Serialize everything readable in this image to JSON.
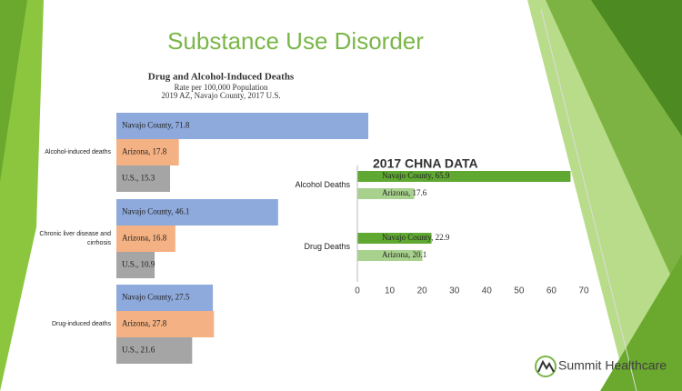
{
  "slide": {
    "title": "Substance Use Disorder",
    "logo": "Summit Healthcare"
  },
  "chart_data": [
    {
      "type": "bar",
      "orientation": "horizontal",
      "title": "Drug and Alcohol-Induced Deaths",
      "subtitle": [
        "Rate per 100,000 Population",
        "2019 AZ, Navajo County, 2017 U.S."
      ],
      "categories": [
        "Alcohol-induced deaths",
        "Chronic liver disease and cirrhosis",
        "Drug-induced deaths"
      ],
      "series": [
        {
          "name": "Navajo County",
          "color": "#8ea9db",
          "values": [
            71.8,
            46.1,
            27.5
          ],
          "value_labels": [
            "Navajo County, 71.8",
            "Navajo County, 46.1",
            "Navajo County, 27.5"
          ]
        },
        {
          "name": "Arizona",
          "color": "#f4b183",
          "values": [
            17.8,
            16.8,
            27.8
          ],
          "value_labels": [
            "Arizona, 17.8",
            "Arizona, 16.8",
            "Arizona, 27.8"
          ]
        },
        {
          "name": "U.S.",
          "color": "#a5a5a5",
          "values": [
            15.3,
            10.9,
            21.6
          ],
          "value_labels": [
            "U.S., 15.3",
            "U.S., 10.9",
            "U.S., 21.6"
          ]
        }
      ]
    },
    {
      "type": "bar",
      "orientation": "horizontal",
      "title": "2017 CHNA DATA",
      "categories": [
        "Alcohol Deaths",
        "Drug Deaths"
      ],
      "series": [
        {
          "name": "Navajo County",
          "color": "#5fa832",
          "values": [
            65.9,
            22.9
          ],
          "value_labels": [
            "Navajo County, 65.9",
            "Navajo County, 22.9"
          ]
        },
        {
          "name": "Arizona",
          "color": "#a9d18e",
          "values": [
            17.6,
            20.1
          ],
          "value_labels": [
            "Arizona, 17.6",
            "Arizona, 20.1"
          ]
        }
      ],
      "xlim": [
        0,
        70
      ],
      "xticks": [
        0,
        10,
        20,
        30,
        40,
        50,
        60,
        70
      ],
      "grid": false
    }
  ]
}
